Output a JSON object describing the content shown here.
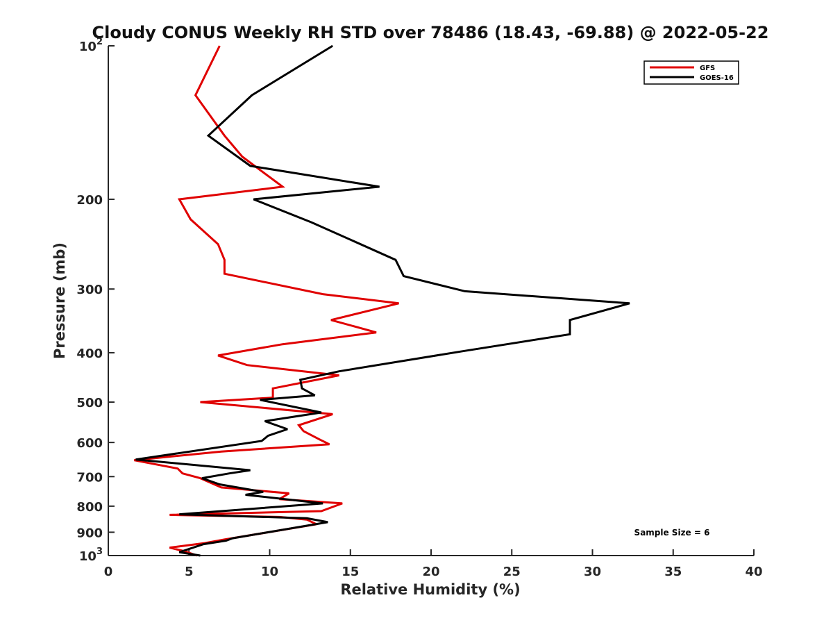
{
  "chart_data": {
    "type": "line",
    "title": "Cloudy CONUS Weekly RH STD over 78486 (18.43, -69.88) @ 2022-05-22",
    "xlabel": "Relative Humidity (%)",
    "ylabel": "Pressure (mb)",
    "xlim": [
      0,
      40
    ],
    "ylim": [
      100,
      1000
    ],
    "y_scale": "log",
    "y_reversed": true,
    "x_ticks": [
      "0",
      "5",
      "10",
      "15",
      "20",
      "25",
      "30",
      "35",
      "40"
    ],
    "y_ticks": [
      {
        "value": 100,
        "base": "10",
        "exp": "2"
      },
      {
        "value": 200,
        "label": "200"
      },
      {
        "value": 300,
        "label": "300"
      },
      {
        "value": 400,
        "label": "400"
      },
      {
        "value": 500,
        "label": "500"
      },
      {
        "value": 600,
        "label": "600"
      },
      {
        "value": 700,
        "label": "700"
      },
      {
        "value": 800,
        "label": "800"
      },
      {
        "value": 900,
        "label": "900"
      },
      {
        "value": 1000,
        "base": "10",
        "exp": "3"
      }
    ],
    "legend_position": "top-right",
    "annotation": "Sample Size = 6",
    "series": [
      {
        "name": "GFS",
        "color": "#e00000",
        "points": [
          [
            6.9,
            100
          ],
          [
            5.4,
            125
          ],
          [
            7.2,
            150
          ],
          [
            8.3,
            165
          ],
          [
            10.8,
            189
          ],
          [
            4.4,
            200
          ],
          [
            5.1,
            219
          ],
          [
            6.8,
            245
          ],
          [
            7.2,
            263
          ],
          [
            7.2,
            280
          ],
          [
            13.3,
            307
          ],
          [
            18.0,
            320
          ],
          [
            13.8,
            345
          ],
          [
            16.6,
            365
          ],
          [
            10.8,
            385
          ],
          [
            6.8,
            405
          ],
          [
            8.6,
            423
          ],
          [
            14.3,
            443
          ],
          [
            10.2,
            470
          ],
          [
            10.2,
            490
          ],
          [
            5.7,
            500
          ],
          [
            13.9,
            528
          ],
          [
            11.8,
            555
          ],
          [
            12.1,
            570
          ],
          [
            13.1,
            592
          ],
          [
            13.7,
            605
          ],
          [
            7.0,
            625
          ],
          [
            1.6,
            650
          ],
          [
            4.3,
            675
          ],
          [
            4.6,
            690
          ],
          [
            5.7,
            705
          ],
          [
            7.0,
            735
          ],
          [
            11.2,
            755
          ],
          [
            10.6,
            775
          ],
          [
            14.5,
            790
          ],
          [
            13.2,
            818
          ],
          [
            3.8,
            832
          ],
          [
            10.6,
            840
          ],
          [
            12.3,
            850
          ],
          [
            12.9,
            868
          ],
          [
            7.2,
            930
          ],
          [
            6.0,
            945
          ],
          [
            3.8,
            965
          ],
          [
            4.7,
            980
          ],
          [
            5.5,
            1000
          ]
        ]
      },
      {
        "name": "GOES-16",
        "color": "#000000",
        "points": [
          [
            13.9,
            100
          ],
          [
            8.9,
            125
          ],
          [
            6.2,
            150
          ],
          [
            8.8,
            172
          ],
          [
            16.8,
            189
          ],
          [
            9.0,
            200
          ],
          [
            12.6,
            222
          ],
          [
            17.8,
            263
          ],
          [
            18.3,
            283
          ],
          [
            22.1,
            303
          ],
          [
            32.3,
            320
          ],
          [
            28.6,
            345
          ],
          [
            28.6,
            368
          ],
          [
            21.8,
            398
          ],
          [
            14.3,
            435
          ],
          [
            11.9,
            452
          ],
          [
            12.0,
            470
          ],
          [
            12.8,
            485
          ],
          [
            9.4,
            495
          ],
          [
            13.2,
            524
          ],
          [
            9.7,
            545
          ],
          [
            11.1,
            565
          ],
          [
            9.9,
            582
          ],
          [
            9.5,
            596
          ],
          [
            1.7,
            648
          ],
          [
            8.8,
            680
          ],
          [
            7.5,
            690
          ],
          [
            5.8,
            705
          ],
          [
            6.9,
            725
          ],
          [
            9.6,
            750
          ],
          [
            8.5,
            760
          ],
          [
            13.3,
            790
          ],
          [
            4.4,
            830
          ],
          [
            12.3,
            845
          ],
          [
            13.6,
            860
          ],
          [
            7.7,
            925
          ],
          [
            7.3,
            935
          ],
          [
            5.9,
            950
          ],
          [
            4.4,
            985
          ],
          [
            5.7,
            1000
          ]
        ]
      }
    ]
  }
}
